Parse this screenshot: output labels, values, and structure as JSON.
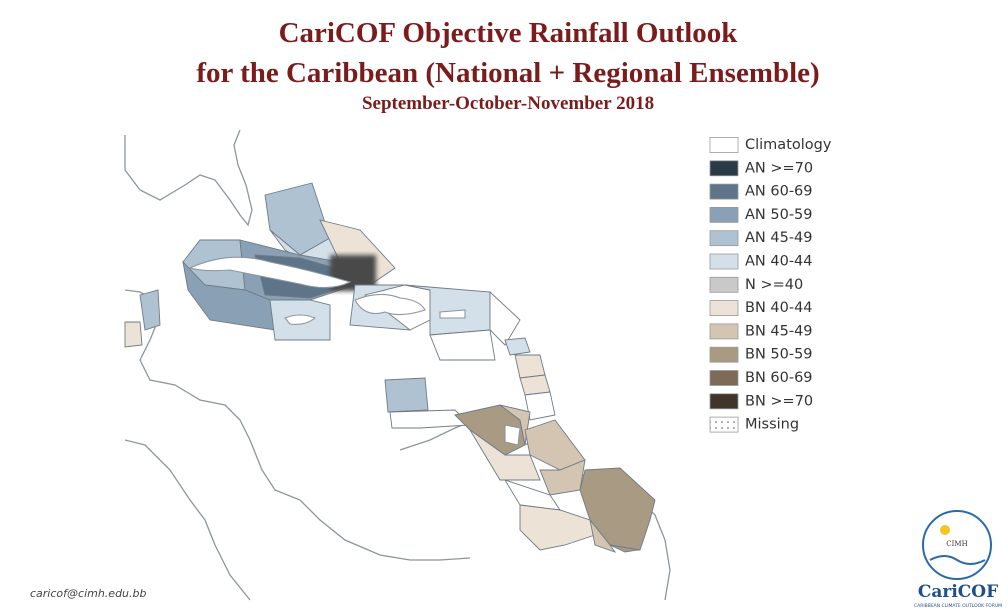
{
  "header": {
    "title_line1": "CariCOF Objective Rainfall Outlook",
    "title_line2": "for the Caribbean (National + Regional Ensemble)",
    "subtitle": "September-October-November 2018"
  },
  "legend": [
    {
      "name": "Climatology",
      "color": "#ffffff"
    },
    {
      "name": "AN  >=70",
      "color": "#2b3a47"
    },
    {
      "name": "AN 60-69",
      "color": "#5e7488"
    },
    {
      "name": "AN 50-59",
      "color": "#8aa1b5"
    },
    {
      "name": "AN 45-49",
      "color": "#afc2d2"
    },
    {
      "name": "AN 40-44",
      "color": "#d4e0e9"
    },
    {
      "name": "N >=40",
      "color": "#c9c9c9"
    },
    {
      "name": "BN 40-44",
      "color": "#ece3d6"
    },
    {
      "name": "BN 45-49",
      "color": "#d3c5b2"
    },
    {
      "name": "BN 50-59",
      "color": "#a99a83"
    },
    {
      "name": "BN 60-69",
      "color": "#7e6b57"
    },
    {
      "name": "BN >=70",
      "color": "#3f3529"
    },
    {
      "name": "Missing",
      "color": "#ffffff",
      "pattern": "dots"
    }
  ],
  "footer": {
    "email": "caricof@cimh.edu.bb",
    "logo_inner": "CIMH",
    "logo_text": "CariCOF",
    "logo_tagline": "CARIBBEAN CLIMATE OUTLOOK FORUM"
  }
}
